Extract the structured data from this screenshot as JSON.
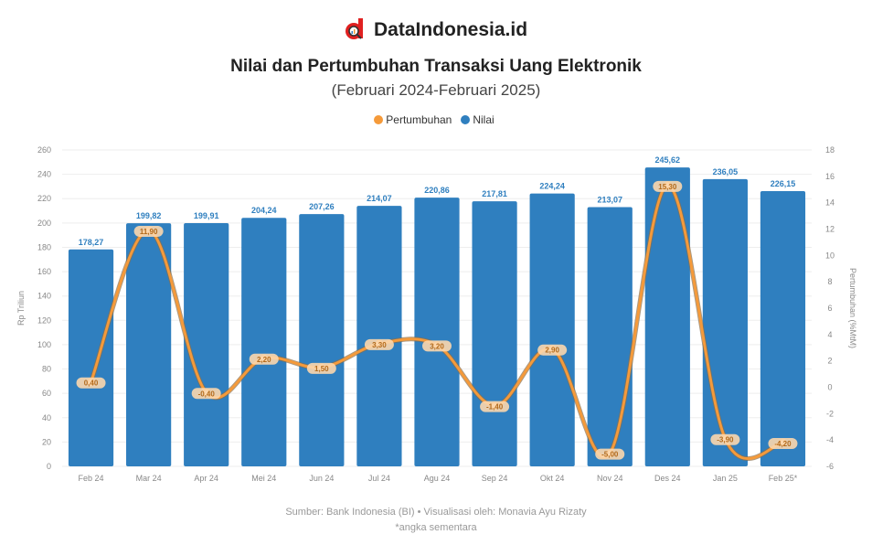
{
  "brand": {
    "name": "DataIndonesia.id",
    "logo_icon": "magnifier-d-logo-icon",
    "logo_color": "#e02020"
  },
  "header": {
    "title": "Nilai dan Pertumbuhan Transaksi Uang Elektronik",
    "subtitle": "(Februari 2024-Februari 2025)"
  },
  "legend": [
    {
      "label": "Pertumbuhan",
      "color": "#f59a3a"
    },
    {
      "label": "Nilai",
      "color": "#2f7fbf"
    }
  ],
  "footer": {
    "source": "Sumber: Bank Indonesia (BI) • Visualisasi oleh: Monavia Ayu Rizaty",
    "note": "*angka sementara"
  },
  "chart_data": {
    "type": "bar+line",
    "title": "Nilai dan Pertumbuhan Transaksi Uang Elektronik",
    "subtitle": "(Februari 2024-Februari 2025)",
    "categories": [
      "Feb 24",
      "Mar 24",
      "Apr 24",
      "Mei 24",
      "Jun 24",
      "Jul 24",
      "Agu 24",
      "Sep 24",
      "Okt 24",
      "Nov 24",
      "Des 24",
      "Jan 25",
      "Feb 25*"
    ],
    "series": [
      {
        "name": "Nilai",
        "type": "bar",
        "axis": "left",
        "color": "#2f7fbf",
        "values": [
          178.27,
          199.82,
          199.91,
          204.24,
          207.26,
          214.07,
          220.86,
          217.81,
          224.24,
          213.07,
          245.62,
          236.05,
          226.15
        ]
      },
      {
        "name": "Pertumbuhan",
        "type": "line",
        "axis": "right",
        "color": "#f59a3a",
        "values": [
          0.4,
          11.9,
          -0.4,
          2.2,
          1.5,
          3.3,
          3.2,
          -1.4,
          2.9,
          -5.0,
          15.3,
          -3.9,
          -4.2
        ]
      }
    ],
    "ylabel": "Rp Triliun",
    "ylabel_right": "Pertumbuhan (%MtM)",
    "ylim": [
      0,
      260
    ],
    "yticks": [
      0,
      20,
      40,
      60,
      80,
      100,
      120,
      140,
      160,
      180,
      200,
      220,
      240,
      260
    ],
    "ylim_right": [
      -6,
      18
    ],
    "yticks_right": [
      -6,
      -4,
      -2,
      0,
      2,
      4,
      6,
      8,
      10,
      12,
      14,
      16,
      18
    ],
    "grid": true,
    "legend_position": "top"
  }
}
